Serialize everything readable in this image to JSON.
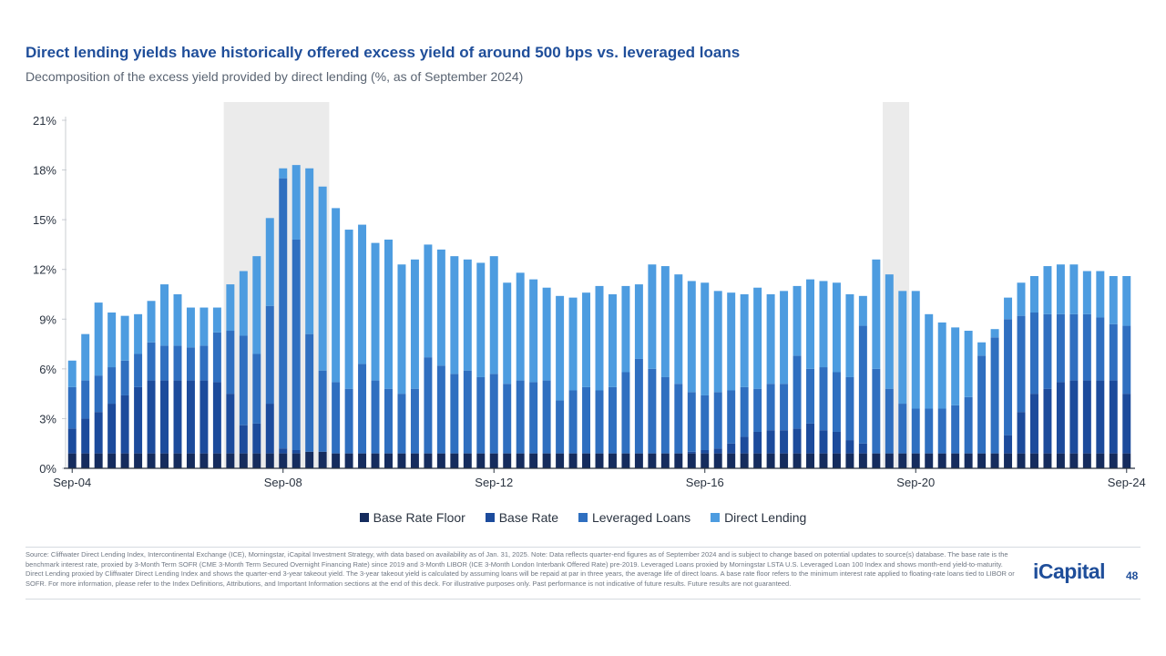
{
  "header": {
    "title": "Direct lending yields have historically offered excess yield of around 500 bps vs. leveraged loans",
    "subtitle": "Decomposition of the excess yield provided by direct lending (%, as of September 2024)"
  },
  "colors": {
    "base_rate_floor": "#152c5e",
    "base_rate": "#1c4b9c",
    "leveraged_loans": "#2f6fc0",
    "direct_lending": "#4d9ce0",
    "recession_shade": "#ebebeb",
    "axis": "#2a3340"
  },
  "chart_data": {
    "type": "bar",
    "stacked": true,
    "title": "Decomposition of the excess yield provided by direct lending (%, as of September 2024)",
    "frequency": "quarterly",
    "x_start": "Sep-04",
    "x_end": "Sep-24",
    "x_tick_labels": [
      "Sep-04",
      "Sep-08",
      "Sep-12",
      "Sep-16",
      "Sep-20",
      "Sep-24"
    ],
    "ylim": [
      0,
      21
    ],
    "y_ticks": [
      0,
      3,
      6,
      9,
      12,
      15,
      18,
      21
    ],
    "y_tick_labels": [
      "0%",
      "3%",
      "6%",
      "9%",
      "12%",
      "15%",
      "18%",
      "21%"
    ],
    "recession_shading_quarters": [
      [
        12,
        19
      ],
      [
        62,
        63
      ]
    ],
    "legend": [
      "Base Rate Floor",
      "Base Rate",
      "Leveraged Loans",
      "Direct Lending"
    ],
    "series": [
      {
        "name": "Base Rate Floor",
        "cumulative_top": [
          0.9,
          0.9,
          0.9,
          0.9,
          0.9,
          0.9,
          0.9,
          0.9,
          0.9,
          0.9,
          0.9,
          0.9,
          0.9,
          0.9,
          0.9,
          0.9,
          0.9,
          0.9,
          1.0,
          1.0,
          0.9,
          0.9,
          0.9,
          0.9,
          0.9,
          0.9,
          0.9,
          0.9,
          0.9,
          0.9,
          0.9,
          0.9,
          0.9,
          0.9,
          0.9,
          0.9,
          0.9,
          0.9,
          0.9,
          0.9,
          0.9,
          0.9,
          0.9,
          0.9,
          0.9,
          0.9,
          0.9,
          0.9,
          0.9,
          0.9,
          0.9,
          0.9,
          0.9,
          0.9,
          0.9,
          0.9,
          0.9,
          0.9,
          0.9,
          0.9,
          0.9,
          0.9,
          0.9,
          0.9,
          0.9,
          0.9,
          0.9,
          0.9,
          0.9,
          0.9,
          0.9,
          0.9,
          0.9,
          0.9,
          0.9,
          0.9,
          0.9,
          0.9,
          0.9,
          0.9,
          0.9
        ]
      },
      {
        "name": "Base Rate",
        "cumulative_top": [
          2.4,
          3.0,
          3.4,
          3.9,
          4.4,
          4.9,
          5.3,
          5.3,
          5.3,
          5.3,
          5.3,
          5.2,
          4.5,
          2.6,
          2.7,
          3.9,
          1.2,
          1.1,
          1.0,
          1.0,
          0.9,
          0.9,
          0.9,
          0.9,
          0.9,
          0.9,
          0.9,
          0.9,
          0.9,
          0.9,
          0.9,
          0.9,
          0.9,
          0.9,
          0.9,
          0.9,
          0.9,
          0.9,
          0.9,
          0.9,
          0.9,
          0.9,
          0.9,
          0.9,
          0.9,
          0.9,
          0.9,
          1.0,
          1.1,
          1.2,
          1.5,
          1.9,
          2.2,
          2.3,
          2.3,
          2.4,
          2.7,
          2.3,
          2.2,
          1.7,
          1.5,
          0.9,
          0.9,
          0.9,
          0.9,
          0.9,
          0.9,
          0.9,
          0.9,
          0.9,
          0.9,
          2.0,
          3.4,
          4.5,
          4.8,
          5.2,
          5.3,
          5.3,
          5.3,
          5.3,
          4.5
        ]
      },
      {
        "name": "Leveraged Loans",
        "cumulative_top": [
          4.9,
          5.3,
          5.6,
          6.1,
          6.5,
          6.9,
          7.6,
          7.4,
          7.4,
          7.3,
          7.4,
          8.2,
          8.3,
          8.0,
          6.9,
          9.8,
          17.5,
          13.8,
          8.1,
          5.9,
          5.2,
          4.8,
          6.3,
          5.3,
          4.8,
          4.5,
          4.8,
          6.7,
          6.2,
          5.7,
          5.9,
          5.5,
          5.7,
          5.1,
          5.3,
          5.2,
          5.3,
          4.1,
          4.7,
          4.9,
          4.7,
          4.9,
          5.8,
          6.6,
          6.0,
          5.5,
          5.1,
          4.6,
          4.4,
          4.6,
          4.7,
          4.9,
          4.8,
          5.1,
          5.1,
          6.8,
          6.0,
          6.1,
          5.8,
          5.5,
          8.6,
          6.0,
          4.8,
          3.9,
          3.6,
          3.6,
          3.6,
          3.8,
          4.3,
          6.8,
          7.9,
          9.0,
          9.2,
          9.4,
          9.3,
          9.3,
          9.3,
          9.3,
          9.1,
          8.7,
          8.6
        ]
      },
      {
        "name": "Direct Lending",
        "cumulative_top": [
          6.5,
          8.1,
          10.0,
          9.4,
          9.2,
          9.3,
          10.1,
          11.1,
          10.5,
          9.7,
          9.7,
          9.7,
          11.1,
          11.9,
          12.8,
          15.1,
          18.1,
          18.3,
          18.1,
          17.0,
          15.7,
          14.4,
          14.7,
          13.6,
          13.8,
          12.3,
          12.6,
          13.5,
          13.2,
          12.8,
          12.6,
          12.4,
          12.8,
          11.2,
          11.8,
          11.4,
          10.9,
          10.4,
          10.3,
          10.6,
          11.0,
          10.5,
          11.0,
          11.1,
          12.3,
          12.2,
          11.7,
          11.3,
          11.2,
          10.7,
          10.6,
          10.5,
          10.9,
          10.5,
          10.7,
          11.0,
          11.4,
          11.3,
          11.2,
          10.5,
          10.4,
          12.6,
          11.7,
          10.7,
          10.7,
          9.3,
          8.8,
          8.5,
          8.3,
          7.6,
          8.4,
          10.3,
          11.2,
          11.6,
          12.2,
          12.3,
          12.3,
          11.9,
          11.9,
          11.6,
          11.6
        ]
      }
    ]
  },
  "legend_labels": [
    "Base Rate Floor",
    "Base Rate",
    "Leveraged Loans",
    "Direct Lending"
  ],
  "footnote": "Source: Cliffwater Direct Lending Index, Intercontinental Exchange (ICE), Morningstar, iCapital Investment Strategy, with data based on availability as of Jan. 31, 2025. Note: Data reflects quarter-end figures as of September 2024 and is subject to change based on potential updates to source(s) database. The base rate is the benchmark interest rate, proxied by 3-Month Term SOFR (CME 3-Month Term Secured Overnight Financing Rate) since 2019 and 3-Month LIBOR (ICE 3-Month London Interbank Offered Rate) pre-2019. Leveraged Loans proxied by Morningstar LSTA U.S. Leveraged Loan 100 Index and shows month-end yield-to-maturity. Direct Lending proxied by Cliffwater Direct Lending Index and shows the quarter-end 3-year takeout yield. The 3-year takeout yield is calculated by assuming loans will be repaid at par in three years, the average life of direct loans. A base rate floor refers to the minimum interest rate applied to floating-rate loans tied to LIBOR or SOFR. For more information, please refer to the Index Definitions, Attributions, and Important Information sections at the end of this deck. For illustrative purposes only. Past performance is not indicative of future results. Future results are not guaranteed.",
  "brand": {
    "logo_text": "iCapital",
    "page_number": "48"
  }
}
